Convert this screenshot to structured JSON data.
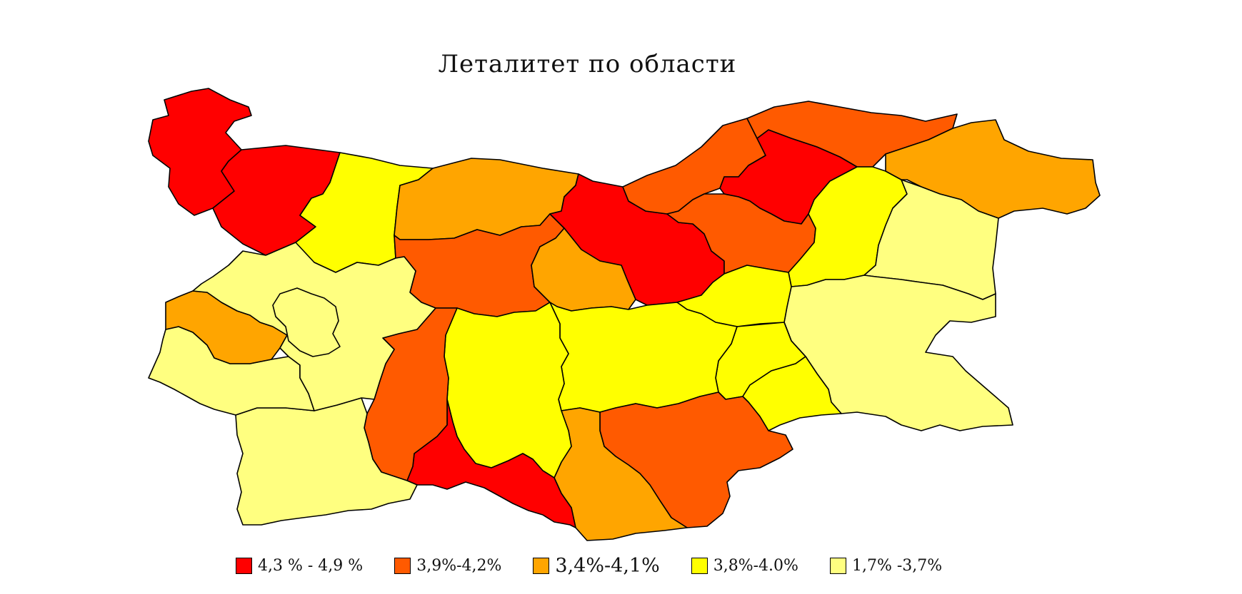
{
  "title": "Леталитет по области",
  "colors": {
    "range1": "#ff0000",
    "range2": "#ff5a00",
    "range3": "#ffa500",
    "range4": "#ffff00",
    "range5": "#ffff80"
  },
  "legend": [
    {
      "label": "4,3 % - 4,9 %",
      "color": "#ff0000"
    },
    {
      "label": "3,9%-4,2%",
      "color": "#ff5a00"
    },
    {
      "label": "3,4%-4,1%",
      "color": "#ffa500"
    },
    {
      "label": "3,8%-4.0%",
      "color": "#ffff00"
    },
    {
      "label": "1,7% -3,7%",
      "color": "#ffff80"
    }
  ]
}
